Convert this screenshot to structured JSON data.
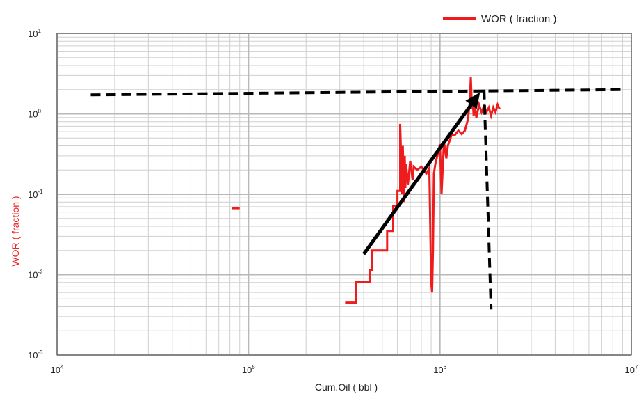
{
  "chart_data": {
    "type": "line",
    "title": "",
    "xlabel": "Cum.Oil ( bbl )",
    "ylabel": "WOR ( fraction )",
    "x_scale": "log",
    "y_scale": "log",
    "xlim": [
      10000,
      10000000
    ],
    "ylim": [
      0.001,
      10
    ],
    "grid": true,
    "legend": {
      "position": "top-right",
      "entries": [
        "WOR ( fraction )"
      ]
    },
    "x_tick_labels": [
      {
        "value": 10000,
        "base": "10",
        "exp": "4"
      },
      {
        "value": 100000,
        "base": "10",
        "exp": "5"
      },
      {
        "value": 1000000,
        "base": "10",
        "exp": "6"
      },
      {
        "value": 10000000,
        "base": "10",
        "exp": "7"
      }
    ],
    "y_tick_labels": [
      {
        "value": 10,
        "base": "10",
        "exp": "1"
      },
      {
        "value": 1,
        "base": "10",
        "exp": "0"
      },
      {
        "value": 0.1,
        "base": "10",
        "exp": "-1"
      },
      {
        "value": 0.01,
        "base": "10",
        "exp": "-2"
      },
      {
        "value": 0.001,
        "base": "10",
        "exp": "-3"
      }
    ],
    "colors": {
      "series": "#ee1c1c",
      "ylabel": "#ee2222",
      "grid_major": "#b8b8b8",
      "grid_minor": "#cfcfcf",
      "annotation": "#000000"
    },
    "series": [
      {
        "name": "WOR ( fraction )",
        "segments": [
          {
            "x": [
              82000,
              90000
            ],
            "y": [
              0.067,
              0.067
            ]
          },
          {
            "x": [
              320000,
              365000,
              365000,
              430000,
              430000,
              440000,
              440000,
              530000,
              530000,
              570000,
              570000,
              600000,
              600000,
              620000,
              620000,
              635000,
              640000,
              650000,
              655000,
              660000,
              665000,
              680000,
              700000,
              720000,
              730000,
              760000,
              800000,
              850000,
              880000,
              900000,
              910000,
              920000,
              930000,
              950000,
              970000,
              1000000,
              1020000,
              1050000,
              1080000,
              1100000,
              1130000,
              1150000,
              1200000,
              1250000,
              1300000,
              1350000,
              1400000,
              1430000,
              1450000,
              1470000,
              1480000,
              1500000,
              1520000,
              1550000,
              1600000,
              1650000,
              1700000,
              1750000,
              1800000,
              1850000,
              1900000,
              1950000,
              2000000,
              2050000
            ],
            "y": [
              0.0045,
              0.0045,
              0.0082,
              0.0082,
              0.0115,
              0.0115,
              0.02,
              0.02,
              0.035,
              0.035,
              0.072,
              0.072,
              0.11,
              0.11,
              0.75,
              0.1,
              0.4,
              0.08,
              0.3,
              0.12,
              0.24,
              0.13,
              0.26,
              0.15,
              0.22,
              0.2,
              0.22,
              0.18,
              0.21,
              0.008,
              0.006,
              0.02,
              0.18,
              0.25,
              0.3,
              0.42,
              0.1,
              0.45,
              0.28,
              0.4,
              0.48,
              0.55,
              0.55,
              0.62,
              0.56,
              0.62,
              0.85,
              1.35,
              2.85,
              1.15,
              1.55,
              0.95,
              1.25,
              0.9,
              1.3,
              1.05,
              1.25,
              1.05,
              1.2,
              0.95,
              1.2,
              1.05,
              1.3,
              1.15
            ]
          }
        ]
      }
    ],
    "annotations": {
      "horizontal_dashed": {
        "x": [
          15000,
          9000000
        ],
        "y": [
          1.72,
          2.0
        ]
      },
      "vertical_dashed": {
        "x": [
          1700000,
          1850000
        ],
        "y": [
          2.0,
          0.0037
        ]
      },
      "arrow": {
        "x": [
          400000,
          1620000
        ],
        "y": [
          0.018,
          1.85
        ]
      }
    }
  }
}
